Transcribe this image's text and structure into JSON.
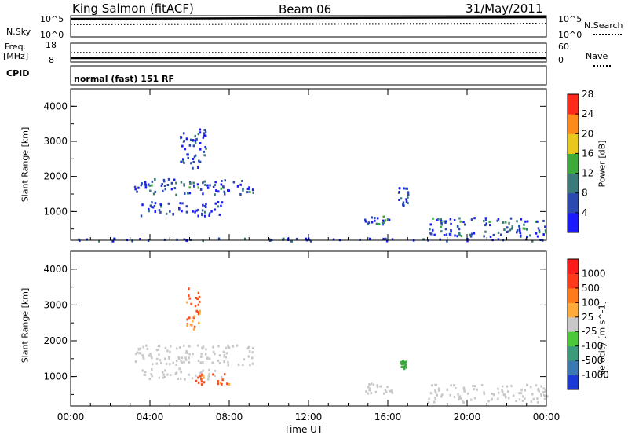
{
  "header": {
    "station": "King Salmon (fitACF)",
    "beam": "Beam 06",
    "date": "31/May/2011"
  },
  "top_panels": {
    "nsky_label": "N.Sky",
    "nsearch_label": "N.Search",
    "nsky_ticks": [
      "10^5",
      "10^0"
    ],
    "nsearch_ticks": [
      "10^5",
      "10^0"
    ],
    "freq_label": "Freq.",
    "freq_unit": "[MHz]",
    "freq_ticks": [
      "18",
      "8"
    ],
    "nave_label": "Nave",
    "nave_ticks": [
      "60",
      "0"
    ],
    "cpid_label": "CPID",
    "cpid_value": "normal (fast) 151 RF"
  },
  "chart_data": [
    {
      "type": "heatmap",
      "name": "power",
      "ylabel": "Slant Range [km]",
      "xlabel": "Time UT",
      "xlim": [
        0,
        24
      ],
      "ylim": [
        180,
        4500
      ],
      "x_tick_labels": [
        "00:00",
        "04:00",
        "08:00",
        "12:00",
        "16:00",
        "20:00",
        "00:00"
      ],
      "y_tick_labels": [
        "1000",
        "2000",
        "3000",
        "4000"
      ],
      "y_ticks": [
        1000,
        2000,
        3000,
        4000
      ],
      "colorbar": {
        "label": "Power [dB]",
        "tick_labels": [
          "4",
          "8",
          "12",
          "16",
          "20",
          "24",
          "28"
        ],
        "colors": [
          "#1a1aff",
          "#2a4ab0",
          "#3a7a7a",
          "#3aaa3a",
          "#e8c81a",
          "#ff8a1a",
          "#ff2a1a"
        ]
      },
      "echo_regions": [
        {
          "t": [
            0.2,
            24
          ],
          "r": [
            180,
            260
          ],
          "level": 1
        },
        {
          "t": [
            3.2,
            9.2
          ],
          "r": [
            1500,
            1950
          ],
          "level": 2
        },
        {
          "t": [
            3.5,
            7.6
          ],
          "r": [
            900,
            1300
          ],
          "level": 1
        },
        {
          "t": [
            5.5,
            6.8
          ],
          "r": [
            2200,
            3400
          ],
          "level": 1
        },
        {
          "t": [
            14.8,
            16.2
          ],
          "r": [
            650,
            900
          ],
          "level": 2
        },
        {
          "t": [
            16.5,
            17.0
          ],
          "r": [
            1200,
            1700
          ],
          "level": 1
        },
        {
          "t": [
            18.0,
            24
          ],
          "r": [
            300,
            850
          ],
          "level": 2
        }
      ]
    },
    {
      "type": "heatmap",
      "name": "velocity",
      "ylabel": "Slant Range [km]",
      "xlabel": "Time UT",
      "xlim": [
        0,
        24
      ],
      "ylim": [
        180,
        4500
      ],
      "x_tick_labels": [
        "00:00",
        "04:00",
        "08:00",
        "12:00",
        "16:00",
        "20:00",
        "00:00"
      ],
      "y_tick_labels": [
        "1000",
        "2000",
        "3000",
        "4000"
      ],
      "y_ticks": [
        1000,
        2000,
        3000,
        4000
      ],
      "colorbar": {
        "label": "Velocity [m s^-1]",
        "tick_labels": [
          "1000",
          "500",
          "100",
          "25",
          "-25",
          "-100",
          "-500",
          "-1000"
        ],
        "colors": [
          "#1a3ad8",
          "#3a7ab0",
          "#3a9a7a",
          "#4ac83a",
          "#c8c8c8",
          "#ffaa3a",
          "#ff7a1a",
          "#ff3a1a",
          "#ff1a1a"
        ]
      },
      "echo_regions": [
        {
          "t": [
            3.2,
            9.2
          ],
          "r": [
            1350,
            1900
          ],
          "color": "ground"
        },
        {
          "t": [
            3.5,
            7.6
          ],
          "r": [
            950,
            1250
          ],
          "color": "ground"
        },
        {
          "t": [
            5.8,
            6.5
          ],
          "r": [
            2200,
            3500
          ],
          "color": "away"
        },
        {
          "t": [
            6.2,
            8.0
          ],
          "r": [
            800,
            1100
          ],
          "color": "away"
        },
        {
          "t": [
            14.8,
            16.2
          ],
          "r": [
            550,
            850
          ],
          "color": "ground"
        },
        {
          "t": [
            16.6,
            16.9
          ],
          "r": [
            1200,
            1500
          ],
          "color": "toward"
        },
        {
          "t": [
            18.0,
            24
          ],
          "r": [
            300,
            800
          ],
          "color": "ground"
        }
      ]
    }
  ]
}
